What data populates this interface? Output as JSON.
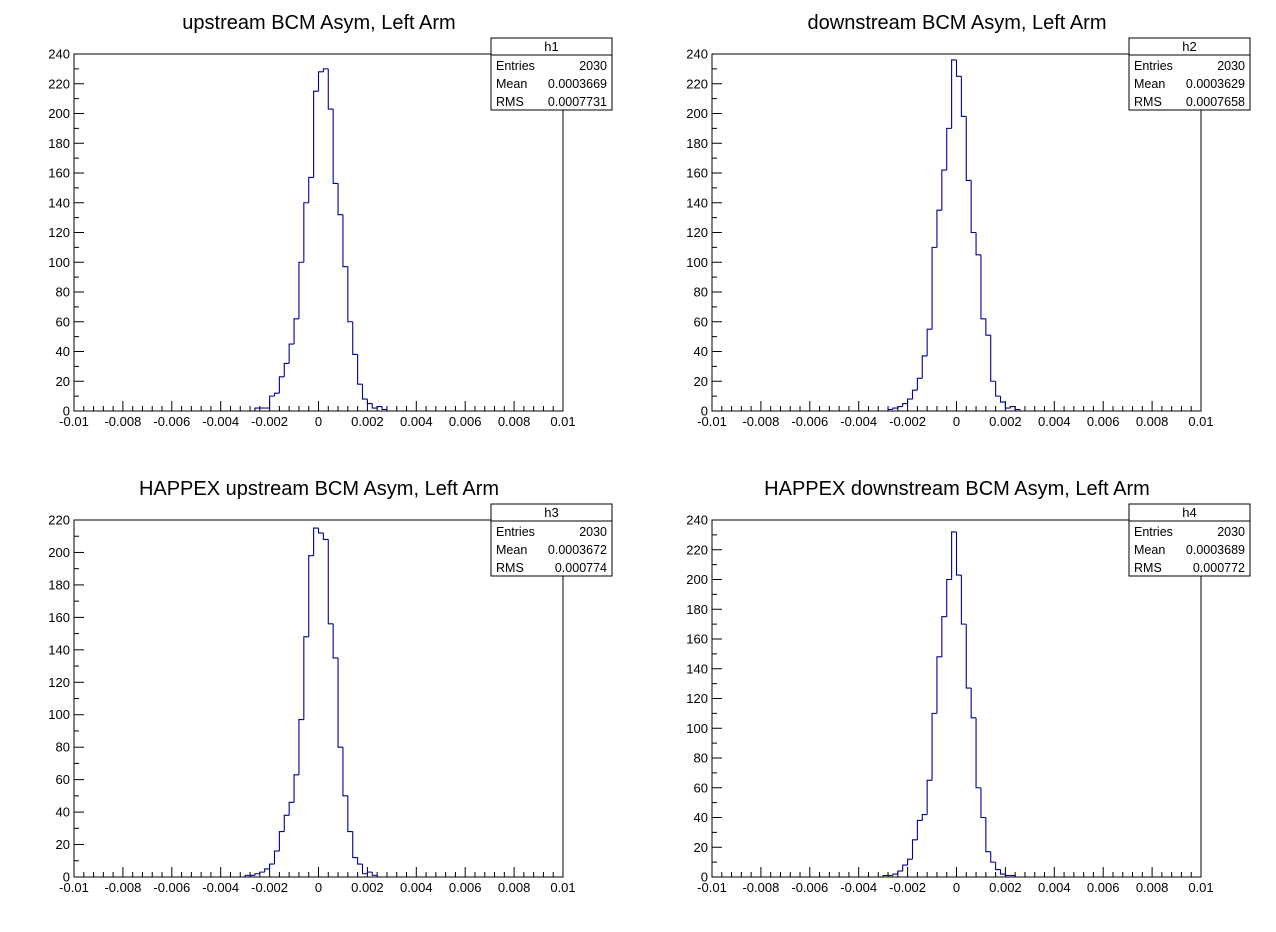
{
  "chart_data": [
    {
      "type": "bar",
      "title": "upstream BCM Asym, Left Arm",
      "xlabel": "",
      "ylabel": "",
      "xlim": [
        -0.01,
        0.01
      ],
      "ylim": [
        0,
        240
      ],
      "xticks": [
        "-0.01",
        "-0.008",
        "-0.006",
        "-0.004",
        "-0.002",
        "0",
        "0.002",
        "0.004",
        "0.006",
        "0.008",
        "0.01"
      ],
      "yticks": [
        "0",
        "20",
        "40",
        "60",
        "80",
        "100",
        "120",
        "140",
        "160",
        "180",
        "200",
        "220",
        "240"
      ],
      "bin_start": -0.0026,
      "bin_width": 0.0002,
      "values": [
        2,
        2,
        2,
        10,
        12,
        23,
        32,
        45,
        62,
        100,
        140,
        157,
        215,
        228,
        230,
        203,
        153,
        132,
        97,
        60,
        38,
        18,
        8,
        5,
        2,
        3,
        1
      ],
      "stats": {
        "name": "h1",
        "rows": [
          {
            "label": "Entries",
            "value": "2030"
          },
          {
            "label": "Mean",
            "value": "0.0003669"
          },
          {
            "label": "RMS",
            "value": "0.0007731"
          }
        ]
      },
      "line_color": "#000099"
    },
    {
      "type": "bar",
      "title": "downstream BCM Asym, Left Arm",
      "xlabel": "",
      "ylabel": "",
      "xlim": [
        -0.01,
        0.01
      ],
      "ylim": [
        0,
        240
      ],
      "xticks": [
        "-0.01",
        "-0.008",
        "-0.006",
        "-0.004",
        "-0.002",
        "0",
        "0.002",
        "0.004",
        "0.006",
        "0.008",
        "0.01"
      ],
      "yticks": [
        "0",
        "20",
        "40",
        "60",
        "80",
        "100",
        "120",
        "140",
        "160",
        "180",
        "200",
        "220",
        "240"
      ],
      "bin_start": -0.0028,
      "bin_width": 0.0002,
      "values": [
        1,
        2,
        3,
        5,
        8,
        14,
        22,
        37,
        55,
        110,
        135,
        162,
        190,
        236,
        225,
        198,
        155,
        120,
        105,
        62,
        51,
        20,
        10,
        6,
        2,
        3,
        1
      ],
      "stats": {
        "name": "h2",
        "rows": [
          {
            "label": "Entries",
            "value": "2030"
          },
          {
            "label": "Mean",
            "value": "0.0003629"
          },
          {
            "label": "RMS",
            "value": "0.0007658"
          }
        ]
      },
      "line_color": "#000099"
    },
    {
      "type": "bar",
      "title": "HAPPEX upstream BCM Asym, Left Arm",
      "xlabel": "",
      "ylabel": "",
      "xlim": [
        -0.01,
        0.01
      ],
      "ylim": [
        0,
        220
      ],
      "xticks": [
        "-0.01",
        "-0.008",
        "-0.006",
        "-0.004",
        "-0.002",
        "0",
        "0.002",
        "0.004",
        "0.006",
        "0.008",
        "0.01"
      ],
      "yticks": [
        "0",
        "20",
        "40",
        "60",
        "80",
        "100",
        "120",
        "140",
        "160",
        "180",
        "200",
        "220"
      ],
      "bin_start": -0.003,
      "bin_width": 0.0002,
      "values": [
        1,
        1,
        2,
        3,
        5,
        8,
        16,
        28,
        38,
        46,
        63,
        97,
        148,
        198,
        215,
        212,
        208,
        156,
        135,
        80,
        50,
        28,
        12,
        8,
        2,
        3,
        1
      ],
      "stats": {
        "name": "h3",
        "rows": [
          {
            "label": "Entries",
            "value": "2030"
          },
          {
            "label": "Mean",
            "value": "0.0003672"
          },
          {
            "label": "RMS",
            "value": "0.000774"
          }
        ]
      },
      "line_color": "#000099"
    },
    {
      "type": "bar",
      "title": "HAPPEX downstream BCM Asym, Left Arm",
      "xlabel": "",
      "ylabel": "",
      "xlim": [
        -0.01,
        0.01
      ],
      "ylim": [
        0,
        240
      ],
      "xticks": [
        "-0.01",
        "-0.008",
        "-0.006",
        "-0.004",
        "-0.002",
        "0",
        "0.002",
        "0.004",
        "0.006",
        "0.008",
        "0.01"
      ],
      "yticks": [
        "0",
        "20",
        "40",
        "60",
        "80",
        "100",
        "120",
        "140",
        "160",
        "180",
        "200",
        "220",
        "240"
      ],
      "bin_start": -0.003,
      "bin_width": 0.0002,
      "values": [
        1,
        1,
        2,
        4,
        8,
        12,
        25,
        38,
        42,
        65,
        110,
        148,
        175,
        200,
        232,
        203,
        170,
        127,
        107,
        60,
        40,
        17,
        10,
        5,
        2,
        1,
        1
      ],
      "stats": {
        "name": "h4",
        "rows": [
          {
            "label": "Entries",
            "value": "2030"
          },
          {
            "label": "Mean",
            "value": "0.0003689"
          },
          {
            "label": "RMS",
            "value": "0.000772"
          }
        ]
      },
      "line_color": "#000099"
    }
  ]
}
